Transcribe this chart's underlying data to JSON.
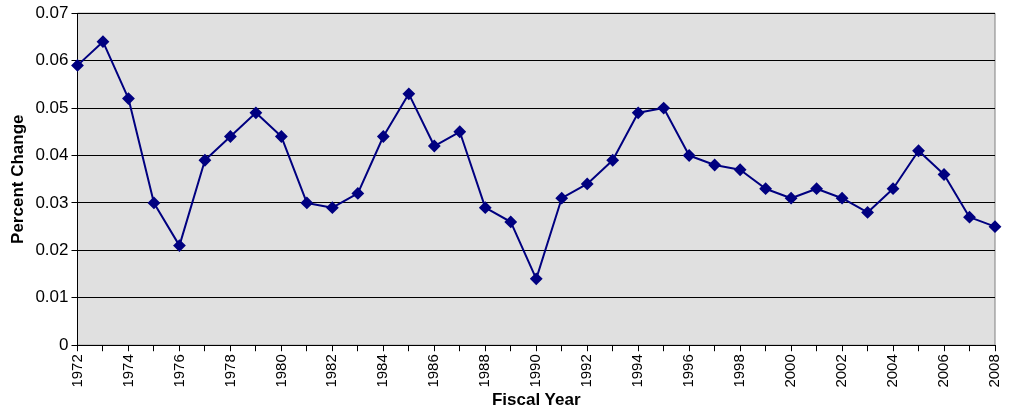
{
  "chart_data": {
    "type": "line",
    "xlabel": "Fiscal Year",
    "ylabel": "Percent Change",
    "categories": [
      "1972",
      null,
      "1974",
      null,
      "1976",
      null,
      "1978",
      null,
      "1980",
      null,
      "1982",
      null,
      "1984",
      null,
      "1986",
      null,
      "1988",
      null,
      "1990",
      null,
      "1992",
      null,
      "1994",
      null,
      "1996",
      null,
      "1998",
      null,
      "2000",
      null,
      "2002",
      null,
      "2004",
      null,
      "2006",
      null,
      "2008"
    ],
    "series": [
      {
        "color": "#000080",
        "values": [
          0.059,
          0.064,
          0.052,
          0.03,
          0.021,
          0.039,
          0.044,
          0.049,
          0.044,
          0.03,
          0.029,
          0.032,
          0.044,
          0.053,
          0.042,
          0.045,
          0.029,
          0.026,
          0.014,
          0.031,
          0.034,
          0.039,
          0.049,
          0.05,
          0.04,
          0.038,
          0.037,
          0.033,
          0.031,
          0.033,
          0.031,
          0.028,
          0.033,
          0.041,
          0.036,
          0.027,
          0.025
        ]
      }
    ],
    "ylim": [
      0,
      0.07
    ],
    "yticks": [
      0,
      0.01,
      0.02,
      0.03,
      0.04,
      0.05,
      0.06,
      0.07
    ],
    "grid": "y",
    "legend": false,
    "marker": "diamond",
    "line_style": "solid"
  }
}
